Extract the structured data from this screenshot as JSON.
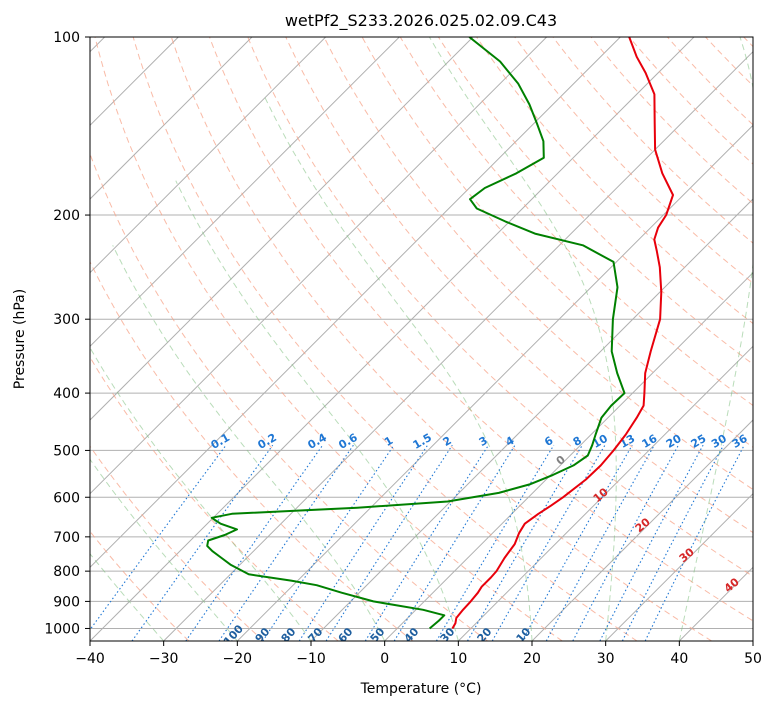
{
  "chart_data": {
    "type": "line",
    "title": "wetPf2_S233.2026.025.02.09.C43",
    "xlabel": "Temperature (°C)",
    "ylabel": "Pressure (hPa)",
    "xlim": [
      -40,
      50
    ],
    "ylim": [
      1050,
      100
    ],
    "y_scale": "log",
    "skew_degrees": 45,
    "grid": true,
    "x_ticks": [
      "−40",
      "−30",
      "−20",
      "−10",
      "0",
      "10",
      "20",
      "30",
      "40",
      "50"
    ],
    "y_ticks": [
      "100",
      "200",
      "300",
      "400",
      "500",
      "600",
      "700",
      "800",
      "900",
      "1000"
    ],
    "series": [
      {
        "color": "#e8000b",
        "points": [
          [
            1000,
            7.5
          ],
          [
            980,
            7.2
          ],
          [
            960,
            6.6
          ],
          [
            930,
            6.4
          ],
          [
            900,
            6.3
          ],
          [
            870,
            6.1
          ],
          [
            850,
            5.8
          ],
          [
            820,
            5.8
          ],
          [
            800,
            5.7
          ],
          [
            760,
            5.0
          ],
          [
            720,
            4.5
          ],
          [
            690,
            3.6
          ],
          [
            665,
            3.1
          ],
          [
            640,
            3.6
          ],
          [
            620,
            4.2
          ],
          [
            600,
            4.7
          ],
          [
            560,
            5.4
          ],
          [
            530,
            5.5
          ],
          [
            500,
            5.2
          ],
          [
            470,
            4.7
          ],
          [
            440,
            3.9
          ],
          [
            420,
            3.2
          ],
          [
            400,
            1.6
          ],
          [
            370,
            -1.0
          ],
          [
            340,
            -3.2
          ],
          [
            300,
            -6.3
          ],
          [
            270,
            -9.8
          ],
          [
            245,
            -13.4
          ],
          [
            230,
            -16.0
          ],
          [
            220,
            -17.9
          ],
          [
            210,
            -19.0
          ],
          [
            200,
            -19.6
          ],
          [
            185,
            -21.4
          ],
          [
            170,
            -25.8
          ],
          [
            155,
            -30.0
          ],
          [
            140,
            -33.6
          ],
          [
            125,
            -37.6
          ],
          [
            115,
            -41.7
          ],
          [
            108,
            -45.1
          ],
          [
            100,
            -48.8
          ]
        ]
      },
      {
        "color": "#008000",
        "points": [
          [
            1000,
            4.4
          ],
          [
            970,
            4.6
          ],
          [
            950,
            4.6
          ],
          [
            930,
            1.0
          ],
          [
            900,
            -6.9
          ],
          [
            870,
            -12.4
          ],
          [
            845,
            -16.8
          ],
          [
            830,
            -20.9
          ],
          [
            810,
            -27.5
          ],
          [
            780,
            -31.3
          ],
          [
            760,
            -33.4
          ],
          [
            740,
            -35.6
          ],
          [
            725,
            -37.0
          ],
          [
            710,
            -37.6
          ],
          [
            695,
            -36.1
          ],
          [
            680,
            -35.2
          ],
          [
            665,
            -38.2
          ],
          [
            650,
            -40.2
          ],
          [
            640,
            -38.0
          ],
          [
            625,
            -21.8
          ],
          [
            610,
            -10.4
          ],
          [
            590,
            -4.6
          ],
          [
            570,
            -1.5
          ],
          [
            550,
            0.3
          ],
          [
            530,
            1.8
          ],
          [
            510,
            2.4
          ],
          [
            490,
            1.6
          ],
          [
            470,
            0.6
          ],
          [
            440,
            -0.9
          ],
          [
            420,
            -1.2
          ],
          [
            400,
            -1.1
          ],
          [
            370,
            -4.8
          ],
          [
            340,
            -8.5
          ],
          [
            300,
            -12.7
          ],
          [
            265,
            -16.4
          ],
          [
            240,
            -20.4
          ],
          [
            225,
            -26.8
          ],
          [
            215,
            -34.9
          ],
          [
            205,
            -40.6
          ],
          [
            195,
            -46.2
          ],
          [
            188,
            -48.4
          ],
          [
            180,
            -47.9
          ],
          [
            170,
            -45.6
          ],
          [
            160,
            -44.0
          ],
          [
            150,
            -46.3
          ],
          [
            140,
            -49.6
          ],
          [
            130,
            -53.2
          ],
          [
            120,
            -57.5
          ],
          [
            110,
            -63.0
          ],
          [
            100,
            -70.5
          ]
        ]
      }
    ],
    "dry_adiabat_labels": [
      "−100",
      "−90",
      "−80",
      "−70",
      "−60",
      "−50",
      "−40",
      "−30",
      "−20",
      "−10"
    ],
    "mixing_ratio_labels": [
      "0.1",
      "0.2",
      "0.4",
      "0.6",
      "1",
      "1.5",
      "2",
      "3",
      "4",
      "6",
      "8",
      "10",
      "13",
      "16",
      "20",
      "25",
      "30",
      "36"
    ],
    "moist_adiabat_labels": [
      "0",
      "10",
      "20",
      "30",
      "40"
    ]
  }
}
